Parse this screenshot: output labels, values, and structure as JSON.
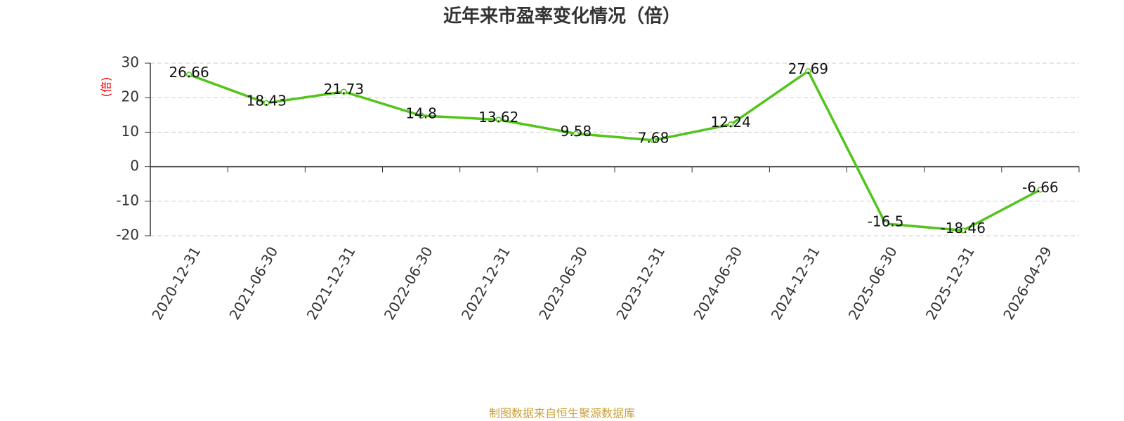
{
  "chart_data": {
    "type": "line",
    "title": "近年来市盈率变化情况（倍）",
    "y_label": "(倍)",
    "source": "制图数据来自恒生聚源数据库",
    "categories": [
      "2020-12-31",
      "2021-06-30",
      "2021-12-31",
      "2022-06-30",
      "2022-12-31",
      "2023-06-30",
      "2023-12-31",
      "2024-06-30",
      "2024-12-31",
      "2025-06-30",
      "2025-12-31",
      "2026-04-29"
    ],
    "series": [
      {
        "name": "市盈率",
        "color": "#52c41a",
        "values": [
          26.66,
          18.43,
          21.73,
          14.8,
          13.62,
          9.58,
          7.68,
          12.24,
          27.69,
          -16.5,
          -18.46,
          -6.66
        ]
      }
    ],
    "ylim": [
      -20,
      30
    ],
    "yticks": [
      -20,
      -10,
      0,
      10,
      20,
      30
    ],
    "grid": true
  }
}
